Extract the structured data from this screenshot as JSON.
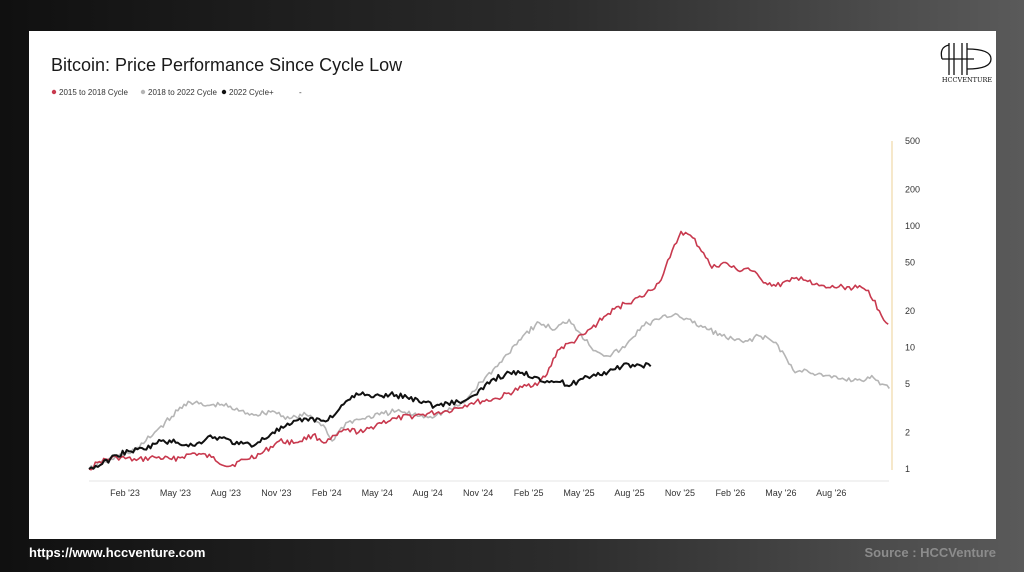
{
  "chart_data": {
    "type": "line",
    "title": "Bitcoin: Price Performance Since Cycle Low",
    "legend": [
      "2015 to 2018 Cycle",
      "2018 to 2022 Cycle",
      "2022 Cycle+",
      "-"
    ],
    "legend_placement": "top-left",
    "x_tick_labels": [
      "Feb '23",
      "May '23",
      "Aug '23",
      "Nov '23",
      "Feb '24",
      "May '24",
      "Aug '24",
      "Nov '24",
      "Feb '25",
      "May '25",
      "Aug '25",
      "Nov '25",
      "Feb '26",
      "May '26",
      "Aug '26"
    ],
    "y_scale": "log",
    "y_axis_side": "right",
    "y_ticks": [
      1,
      2,
      5,
      10,
      20,
      50,
      100,
      200,
      500
    ],
    "y_tick_labels": [
      "1",
      "2",
      "5",
      "10",
      "20",
      "50",
      "100",
      "200",
      "500"
    ],
    "ylim": [
      1,
      500
    ],
    "xlim": [
      "2022-11-21",
      "2026-11-15"
    ],
    "grid": false,
    "series": [
      {
        "name": "2015 to 2018 Cycle",
        "color": "#c8394e",
        "points": [
          [
            "2022-11-21",
            1.0
          ],
          [
            "2022-12-10",
            1.15
          ],
          [
            "2023-01-10",
            1.25
          ],
          [
            "2023-02-15",
            1.18
          ],
          [
            "2023-03-20",
            1.25
          ],
          [
            "2023-04-20",
            1.2
          ],
          [
            "2023-06-01",
            1.35
          ],
          [
            "2023-07-01",
            1.25
          ],
          [
            "2023-08-01",
            1.05
          ],
          [
            "2023-09-01",
            1.2
          ],
          [
            "2023-10-01",
            1.35
          ],
          [
            "2023-11-01",
            1.7
          ],
          [
            "2023-12-01",
            1.65
          ],
          [
            "2024-01-01",
            1.9
          ],
          [
            "2024-01-25",
            1.65
          ],
          [
            "2024-03-01",
            2.1
          ],
          [
            "2024-04-01",
            2.0
          ],
          [
            "2024-05-01",
            2.4
          ],
          [
            "2024-06-01",
            2.6
          ],
          [
            "2024-07-15",
            2.8
          ],
          [
            "2024-09-01",
            3.0
          ],
          [
            "2024-10-15",
            3.5
          ],
          [
            "2024-12-01",
            3.8
          ],
          [
            "2025-01-15",
            4.7
          ],
          [
            "2025-02-15",
            5.2
          ],
          [
            "2025-03-01",
            6.0
          ],
          [
            "2025-03-20",
            9.5
          ],
          [
            "2025-04-15",
            11.0
          ],
          [
            "2025-05-10",
            13.0
          ],
          [
            "2025-06-01",
            16.0
          ],
          [
            "2025-06-20",
            19.0
          ],
          [
            "2025-07-20",
            23.0
          ],
          [
            "2025-08-20",
            26.0
          ],
          [
            "2025-09-20",
            34.0
          ],
          [
            "2025-10-10",
            55.0
          ],
          [
            "2025-10-30",
            90.0
          ],
          [
            "2025-11-20",
            80.0
          ],
          [
            "2025-12-10",
            60.0
          ],
          [
            "2025-12-25",
            45.0
          ],
          [
            "2026-01-15",
            50.0
          ],
          [
            "2026-02-10",
            43.0
          ],
          [
            "2026-03-01",
            45.0
          ],
          [
            "2026-03-25",
            36.0
          ],
          [
            "2026-04-20",
            32.0
          ],
          [
            "2026-05-15",
            35.0
          ],
          [
            "2026-06-05",
            38.0
          ],
          [
            "2026-06-25",
            33.0
          ],
          [
            "2026-07-20",
            31.0
          ],
          [
            "2026-08-20",
            31.5
          ],
          [
            "2026-09-15",
            31.0
          ],
          [
            "2026-10-05",
            29.5
          ],
          [
            "2026-10-25",
            20.0
          ],
          [
            "2026-11-10",
            15.5
          ]
        ]
      },
      {
        "name": "2018 to 2022 Cycle",
        "color": "#b5b5b5",
        "points": [
          [
            "2022-11-21",
            1.0
          ],
          [
            "2022-12-20",
            1.15
          ],
          [
            "2023-01-20",
            1.3
          ],
          [
            "2023-02-20",
            1.5
          ],
          [
            "2023-03-20",
            2.0
          ],
          [
            "2023-04-20",
            2.7
          ],
          [
            "2023-05-20",
            3.6
          ],
          [
            "2023-06-20",
            3.3
          ],
          [
            "2023-07-20",
            3.4
          ],
          [
            "2023-08-20",
            3.0
          ],
          [
            "2023-09-20",
            2.8
          ],
          [
            "2023-10-20",
            3.0
          ],
          [
            "2023-11-20",
            2.6
          ],
          [
            "2023-12-20",
            2.8
          ],
          [
            "2024-01-20",
            2.3
          ],
          [
            "2024-02-05",
            1.7
          ],
          [
            "2024-03-01",
            2.4
          ],
          [
            "2024-04-01",
            2.6
          ],
          [
            "2024-05-01",
            2.8
          ],
          [
            "2024-06-01",
            3.0
          ],
          [
            "2024-07-01",
            2.8
          ],
          [
            "2024-08-01",
            2.7
          ],
          [
            "2024-09-01",
            3.0
          ],
          [
            "2024-10-01",
            3.5
          ],
          [
            "2024-11-01",
            5.2
          ],
          [
            "2024-12-01",
            7.0
          ],
          [
            "2025-01-01",
            10.5
          ],
          [
            "2025-01-20",
            13.0
          ],
          [
            "2025-02-15",
            16.0
          ],
          [
            "2025-03-15",
            14.0
          ],
          [
            "2025-04-10",
            17.0
          ],
          [
            "2025-05-01",
            13.0
          ],
          [
            "2025-05-20",
            10.0
          ],
          [
            "2025-06-20",
            8.5
          ],
          [
            "2025-07-20",
            10.0
          ],
          [
            "2025-08-20",
            15.0
          ],
          [
            "2025-09-20",
            17.0
          ],
          [
            "2025-10-20",
            19.0
          ],
          [
            "2025-11-20",
            16.0
          ],
          [
            "2025-12-20",
            14.0
          ],
          [
            "2026-01-20",
            12.0
          ],
          [
            "2026-02-20",
            11.0
          ],
          [
            "2026-03-20",
            12.5
          ],
          [
            "2026-04-20",
            11.0
          ],
          [
            "2026-05-10",
            8.0
          ],
          [
            "2026-05-25",
            6.2
          ],
          [
            "2026-06-15",
            6.5
          ],
          [
            "2026-07-15",
            5.8
          ],
          [
            "2026-08-15",
            5.5
          ],
          [
            "2026-09-15",
            5.4
          ],
          [
            "2026-10-15",
            5.6
          ],
          [
            "2026-10-30",
            5.0
          ],
          [
            "2026-11-12",
            4.6
          ]
        ]
      },
      {
        "name": "2022 Cycle+",
        "color": "#111111",
        "points": [
          [
            "2022-11-21",
            1.0
          ],
          [
            "2022-12-15",
            1.1
          ],
          [
            "2023-01-10",
            1.3
          ],
          [
            "2023-02-01",
            1.4
          ],
          [
            "2023-03-01",
            1.45
          ],
          [
            "2023-04-01",
            1.7
          ],
          [
            "2023-05-01",
            1.65
          ],
          [
            "2023-06-01",
            1.55
          ],
          [
            "2023-06-25",
            1.85
          ],
          [
            "2023-07-20",
            1.8
          ],
          [
            "2023-08-20",
            1.6
          ],
          [
            "2023-09-20",
            1.6
          ],
          [
            "2023-10-20",
            2.0
          ],
          [
            "2023-11-20",
            2.3
          ],
          [
            "2023-12-20",
            2.6
          ],
          [
            "2024-01-20",
            2.5
          ],
          [
            "2024-02-10",
            2.8
          ],
          [
            "2024-03-01",
            3.6
          ],
          [
            "2024-03-20",
            4.2
          ],
          [
            "2024-04-20",
            3.9
          ],
          [
            "2024-05-20",
            4.1
          ],
          [
            "2024-06-20",
            3.9
          ],
          [
            "2024-07-20",
            3.6
          ],
          [
            "2024-08-10",
            3.3
          ],
          [
            "2024-09-01",
            3.5
          ],
          [
            "2024-09-30",
            3.6
          ],
          [
            "2024-10-25",
            4.1
          ],
          [
            "2024-11-20",
            5.4
          ],
          [
            "2024-12-15",
            6.0
          ],
          [
            "2025-01-15",
            6.2
          ],
          [
            "2025-02-10",
            5.7
          ],
          [
            "2025-03-01",
            5.3
          ],
          [
            "2025-03-25",
            5.2
          ],
          [
            "2025-04-10",
            4.8
          ],
          [
            "2025-05-01",
            5.5
          ],
          [
            "2025-05-25",
            6.0
          ],
          [
            "2025-06-20",
            6.3
          ],
          [
            "2025-07-15",
            7.0
          ],
          [
            "2025-08-15",
            7.2
          ],
          [
            "2025-09-05",
            7.0
          ]
        ]
      }
    ]
  },
  "logo": {
    "text": "HCCVENTURE",
    "monogram": "HCC"
  },
  "footer": {
    "url": "https://www.hccventure.com",
    "source": "Source : HCCVenture"
  }
}
